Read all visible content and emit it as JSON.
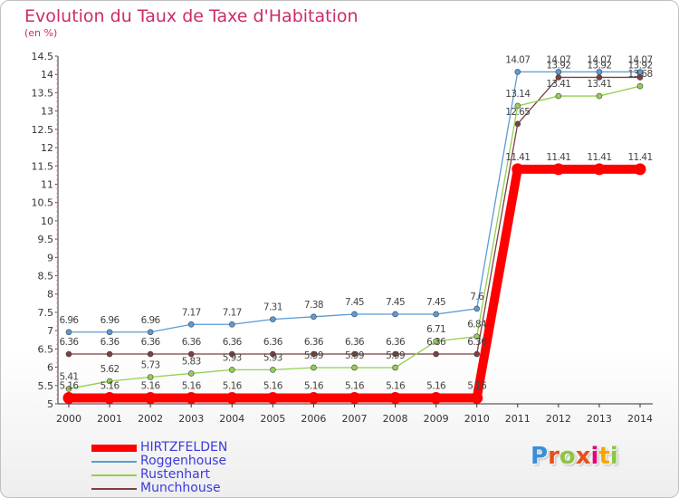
{
  "page": {
    "title": "Evolution du Taux de Taxe d'Habitation",
    "unit": "(en %)"
  },
  "logo": {
    "letters": [
      "P",
      "r",
      "o",
      "x",
      "i",
      "t",
      "i"
    ],
    "colors": [
      "#3a8ed8",
      "#e94e1b",
      "#8dc63f",
      "#e94e1b",
      "#e4007c",
      "#f7a600",
      "#8dc63f"
    ]
  },
  "chart_data": {
    "type": "line",
    "title": "Evolution du Taux de Taxe d'Habitation",
    "ylabel": "(en %)",
    "xlabel": "",
    "categories": [
      "2000",
      "2001",
      "2002",
      "2003",
      "2004",
      "2005",
      "2006",
      "2007",
      "2008",
      "2009",
      "2010",
      "2011",
      "2012",
      "2013",
      "2014"
    ],
    "ylim": [
      5,
      14.5
    ],
    "yticks": [
      "5",
      "5.5",
      "6",
      "6.5",
      "7",
      "7.5",
      "8",
      "8.5",
      "9",
      "9.5",
      "10",
      "10.5",
      "11",
      "11.5",
      "12",
      "12.5",
      "13",
      "13.5",
      "14",
      "14.5"
    ],
    "grid": false,
    "legend_position": "bottom-left",
    "series": [
      {
        "name": "HIRTZFELDEN",
        "color": "#ff0000",
        "values": [
          5.16,
          5.16,
          5.16,
          5.16,
          5.16,
          5.16,
          5.16,
          5.16,
          5.16,
          5.16,
          5.16,
          11.41,
          11.41,
          11.41,
          11.41
        ],
        "labels": [
          "5.16",
          "5.16",
          "5.16",
          "5.16",
          "5.16",
          "5.16",
          "5.16",
          "5.16",
          "5.16",
          "5.16",
          "5.16",
          "11.41",
          "11.41",
          "11.41",
          "11.41"
        ]
      },
      {
        "name": "Roggenhouse",
        "color": "#5b9bd5",
        "values": [
          6.96,
          6.96,
          6.96,
          7.17,
          7.17,
          7.31,
          7.38,
          7.45,
          7.45,
          7.45,
          7.6,
          14.07,
          14.07,
          14.07,
          14.07
        ],
        "labels": [
          "6.96",
          "6.96",
          "6.96",
          "7.17",
          "7.17",
          "7.31",
          "7.38",
          "7.45",
          "7.45",
          "7.45",
          "7.6",
          "14.07",
          "14.07",
          "14.07",
          "14.07"
        ]
      },
      {
        "name": "Rustenhart",
        "color": "#92d050",
        "values": [
          5.41,
          5.62,
          5.73,
          5.83,
          5.93,
          5.93,
          5.99,
          5.99,
          5.99,
          6.71,
          6.84,
          13.14,
          13.41,
          13.41,
          13.68
        ],
        "labels": [
          "5.41",
          "5.62",
          "5.73",
          "5.83",
          "5.93",
          "5.93",
          "5.99",
          "5.99",
          "5.99",
          "6.71",
          "6.84",
          "13.14",
          "13.41",
          "13.41",
          "13.68"
        ]
      },
      {
        "name": "Munchhouse",
        "color": "#7f3f3f",
        "values": [
          6.36,
          6.36,
          6.36,
          6.36,
          6.36,
          6.36,
          6.36,
          6.36,
          6.36,
          6.36,
          6.36,
          12.65,
          13.92,
          13.92,
          13.92
        ],
        "labels": [
          "6.36",
          "6.36",
          "6.36",
          "6.36",
          "6.36",
          "6.36",
          "6.36",
          "6.36",
          "6.36",
          "6.36",
          "6.36",
          "12.65",
          "13.92",
          "13.92",
          "13.92"
        ]
      }
    ]
  }
}
